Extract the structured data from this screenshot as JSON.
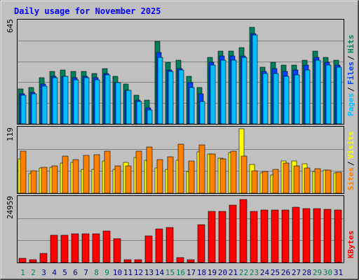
{
  "title": "Daily usage for November 2025",
  "colors": {
    "background": "#c0c0c0",
    "panel": "#c0c0c0",
    "grid": "#808080",
    "title": "#0000ff",
    "hits": "#00805c",
    "files": "#0040ff",
    "pages": "#00c0ff",
    "visits": "#ffff00",
    "sites": "#ff8000",
    "kbytes": "#ff0000",
    "weekend_label": "#00805c",
    "weekday_label": "#000080"
  },
  "panels": {
    "hits_files_pages": {
      "ymax_label": "645",
      "legend": [
        "Pages",
        "Files",
        "Hits"
      ]
    },
    "visits_sites": {
      "ymax_label": "119",
      "legend": [
        "Sites",
        "Visits"
      ]
    },
    "kbytes": {
      "ymax_label": "24959",
      "legend": [
        "KBytes"
      ]
    }
  },
  "chart_data": {
    "type": "bar",
    "categories": [
      "1",
      "2",
      "3",
      "4",
      "5",
      "6",
      "7",
      "8",
      "9",
      "10",
      "11",
      "12",
      "13",
      "14",
      "15",
      "16",
      "17",
      "18",
      "19",
      "20",
      "21",
      "22",
      "23",
      "24",
      "25",
      "26",
      "27",
      "28",
      "29",
      "30",
      "31"
    ],
    "weekend_days": [
      "1",
      "2",
      "8",
      "9",
      "15",
      "16",
      "22",
      "23",
      "29",
      "30"
    ],
    "panels": [
      {
        "name": "hits_files_pages",
        "ymax": 645,
        "series": [
          {
            "name": "Hits",
            "values": [
              220,
              230,
              290,
              330,
              340,
              330,
              330,
              320,
              350,
              300,
              250,
              180,
              150,
              520,
              390,
              400,
              300,
              230,
              420,
              460,
              460,
              480,
              610,
              360,
              390,
              370,
              370,
              400,
              460,
              420,
              400
            ]
          },
          {
            "name": "Files",
            "values": [
              190,
              200,
              250,
              300,
              300,
              290,
              300,
              290,
              320,
              260,
              210,
              150,
              100,
              450,
              340,
              350,
              260,
              190,
              390,
              430,
              430,
              430,
              570,
              330,
              350,
              330,
              340,
              370,
              420,
              390,
              370
            ]
          },
          {
            "name": "Pages",
            "values": [
              180,
              190,
              240,
              290,
              300,
              280,
              290,
              280,
              310,
              260,
              210,
              140,
              90,
              420,
              330,
              340,
              230,
              140,
              370,
              400,
              400,
              420,
              560,
              320,
              320,
              300,
              310,
              340,
              400,
              370,
              360
            ]
          }
        ]
      },
      {
        "name": "visits_sites",
        "ymax": 119,
        "series": [
          {
            "name": "Visits",
            "values": [
              63,
              36,
              46,
              48,
              56,
              57,
              44,
              44,
              60,
              44,
              57,
              66,
              61,
              46,
              44,
              61,
              40,
              76,
              73,
              65,
              75,
              119,
              53,
              38,
              34,
              59,
              60,
              54,
              40,
              43,
              37
            ]
          },
          {
            "name": "Sites",
            "values": [
              78,
              42,
              48,
              50,
              68,
              62,
              70,
              71,
              78,
              50,
              50,
              78,
              85,
              62,
              67,
              90,
              60,
              89,
              73,
              64,
              78,
              69,
              41,
              40,
              44,
              56,
              50,
              46,
              45,
              43,
              39
            ]
          }
        ]
      },
      {
        "name": "kbytes",
        "ymax": 24959,
        "series": [
          {
            "name": "KBytes",
            "values": [
              1700,
              1100,
              3500,
              10600,
              10700,
              11100,
              11000,
              11000,
              12300,
              9300,
              1000,
              1100,
              10400,
              13100,
              13500,
              2000,
              1000,
              14700,
              19900,
              19900,
              22300,
              24500,
              19900,
              20300,
              20300,
              20300,
              21300,
              21000,
              21000,
              20500,
              20300
            ]
          }
        ]
      }
    ]
  }
}
